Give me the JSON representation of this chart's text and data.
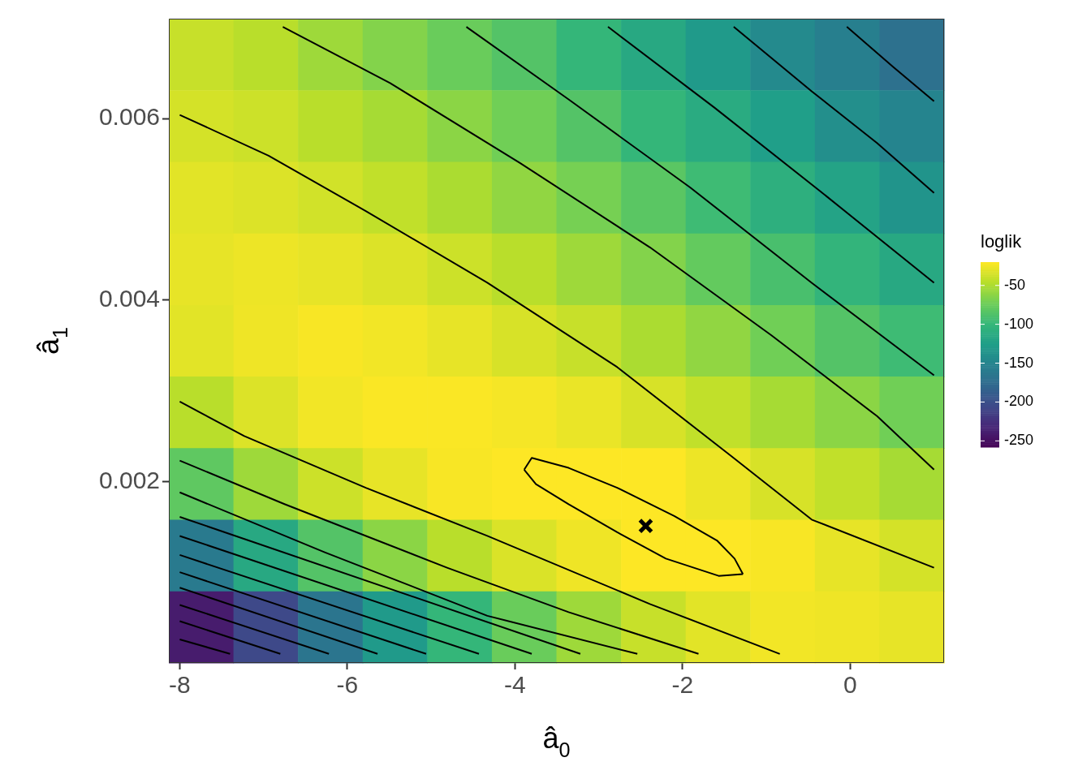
{
  "chart_data": {
    "type": "heatmap",
    "xlabel": "â$_{0}$",
    "ylabel": "â$_{1}$",
    "clabel": "loglik",
    "xlim": [
      -8.13,
      1.12
    ],
    "ylim": [
      0,
      0.0071
    ],
    "xticks": [
      -8,
      -6,
      -4,
      -2,
      0
    ],
    "yticks": [
      0.002,
      0.004,
      0.006
    ],
    "clim": [
      -258,
      -20
    ],
    "cticks": [
      -50,
      -100,
      -150,
      -200,
      -250
    ],
    "line_style": "solid",
    "cells": [
      [
        -40,
        -45,
        -55,
        -65,
        -75,
        -85,
        -100,
        -115,
        -130,
        -145,
        -155,
        -170
      ],
      [
        -35,
        -38,
        -45,
        -52,
        -62,
        -72,
        -85,
        -100,
        -112,
        -125,
        -140,
        -150
      ],
      [
        -30,
        -32,
        -36,
        -42,
        -50,
        -60,
        -70,
        -82,
        -95,
        -108,
        -120,
        -135
      ],
      [
        -28,
        -26,
        -28,
        -32,
        -38,
        -45,
        -55,
        -65,
        -78,
        -90,
        -102,
        -115
      ],
      [
        -30,
        -25,
        -22,
        -24,
        -28,
        -34,
        -40,
        -50,
        -60,
        -72,
        -85,
        -95
      ],
      [
        -45,
        -32,
        -24,
        -21,
        -21,
        -23,
        -27,
        -34,
        -42,
        -52,
        -62,
        -72
      ],
      [
        -80,
        -55,
        -38,
        -28,
        -22,
        -20,
        -19,
        -20,
        -26,
        -34,
        -42,
        -52
      ],
      [
        -160,
        -115,
        -85,
        -62,
        -45,
        -33,
        -25,
        -20,
        -19,
        -22,
        -28,
        -35
      ],
      [
        -240,
        -205,
        -165,
        -130,
        -100,
        -75,
        -55,
        -40,
        -30,
        -24,
        -25,
        -28
      ]
    ],
    "series": [
      {
        "type": "line",
        "color": "#000000",
        "x": [
          -8,
          -6.94,
          -5.78,
          -4.33,
          -2.78,
          -1.42,
          -0.46,
          1.0
        ],
        "values": [
          0.00604,
          0.00559,
          0.00498,
          0.00419,
          0.00326,
          0.00228,
          0.00158,
          0.00105
        ]
      },
      {
        "type": "line",
        "color": "#000000",
        "x": [
          -6.77,
          -5.49,
          -3.94,
          -2.39,
          -0.94,
          0.32,
          1.0
        ],
        "values": [
          0.00701,
          0.00639,
          0.00551,
          0.00458,
          0.00361,
          0.00272,
          0.00213
        ]
      },
      {
        "type": "line",
        "color": "#000000",
        "x": [
          -4.58,
          -3.36,
          -1.91,
          -0.46,
          1.0
        ],
        "values": [
          0.00701,
          0.00621,
          0.00524,
          0.00419,
          0.00317
        ]
      },
      {
        "type": "line",
        "color": "#000000",
        "x": [
          -2.89,
          -1.62,
          -0.36,
          1.0
        ],
        "values": [
          0.00701,
          0.00612,
          0.0052,
          0.00419
        ]
      },
      {
        "type": "line",
        "color": "#000000",
        "x": [
          -1.39,
          -0.46,
          0.32,
          1.0
        ],
        "values": [
          0.00701,
          0.0063,
          0.00573,
          0.00518
        ]
      },
      {
        "type": "line",
        "color": "#000000",
        "x": [
          -0.04,
          0.51,
          1.0
        ],
        "values": [
          0.00701,
          0.00657,
          0.00619
        ]
      },
      {
        "type": "line",
        "color": "#000000",
        "x": [
          -3.89,
          -3.8,
          -3.36,
          -2.78,
          -2.1,
          -1.59,
          -1.38,
          -1.28
        ],
        "values": [
          0.00213,
          0.00226,
          0.00215,
          0.00193,
          0.00162,
          0.00135,
          0.00115,
          0.00098
        ]
      },
      {
        "type": "line",
        "color": "#000000",
        "x": [
          -3.89,
          -3.75,
          -3.36,
          -2.78,
          -2.2,
          -1.57,
          -1.28
        ],
        "values": [
          0.00213,
          0.00197,
          0.00175,
          0.00144,
          0.00115,
          0.00096,
          0.00098
        ]
      },
      {
        "type": "line",
        "color": "#000000",
        "x": [
          -8,
          -7.23,
          -5.78,
          -4.33,
          -2.39,
          -0.84
        ],
        "values": [
          0.00288,
          0.0025,
          0.00193,
          0.0014,
          0.00065,
          0.0001
        ]
      },
      {
        "type": "line",
        "color": "#000000",
        "x": [
          -8,
          -6.75,
          -4.81,
          -3.36,
          -1.81
        ],
        "values": [
          0.00223,
          0.00175,
          0.00105,
          0.00056,
          0.0001
        ]
      },
      {
        "type": "line",
        "color": "#000000",
        "x": [
          -8,
          -6.27,
          -4.33,
          -2.54
        ],
        "values": [
          0.00188,
          0.00122,
          0.00052,
          0.0001
        ]
      },
      {
        "type": "line",
        "color": "#000000",
        "x": [
          -8,
          -3.22
        ],
        "values": [
          0.00161,
          0.0001
        ]
      },
      {
        "type": "line",
        "color": "#000000",
        "x": [
          -8,
          -3.8
        ],
        "values": [
          0.0014,
          0.0001
        ]
      },
      {
        "type": "line",
        "color": "#000000",
        "x": [
          -8,
          -4.43
        ],
        "values": [
          0.00119,
          0.0001
        ]
      },
      {
        "type": "line",
        "color": "#000000",
        "x": [
          -8,
          -5.06
        ],
        "values": [
          0.001,
          0.0001
        ]
      },
      {
        "type": "line",
        "color": "#000000",
        "x": [
          -8,
          -5.64
        ],
        "values": [
          0.00083,
          0.0001
        ]
      },
      {
        "type": "line",
        "color": "#000000",
        "x": [
          -8,
          -6.22
        ],
        "values": [
          0.00064,
          0.0001
        ]
      },
      {
        "type": "line",
        "color": "#000000",
        "x": [
          -8,
          -6.8
        ],
        "values": [
          0.00046,
          0.0001
        ]
      },
      {
        "type": "line",
        "color": "#000000",
        "x": [
          -8,
          -7.4
        ],
        "values": [
          0.00026,
          0.0001
        ]
      },
      {
        "type": "scatter",
        "color": "#000000",
        "marker": "cross",
        "x": [
          -2.44
        ],
        "values": [
          0.00151
        ]
      }
    ]
  }
}
